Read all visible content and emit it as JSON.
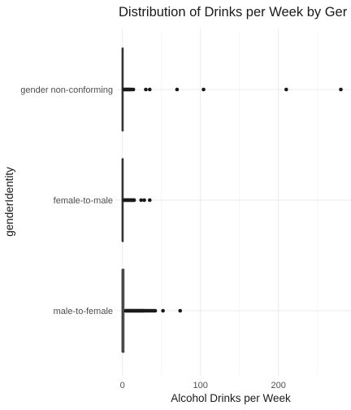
{
  "chart_data": {
    "type": "boxplot",
    "orientation": "horizontal",
    "title": "Distribution of Drinks per Week by Ger",
    "xlabel": "Alcohol Drinks per Week",
    "ylabel": "genderIdentity",
    "xlim": [
      -8,
      293
    ],
    "x_ticks": [
      0,
      100,
      200
    ],
    "x_tick_labels": [
      "0",
      "100",
      "200"
    ],
    "grid": true,
    "categories": [
      "male-to-female",
      "female-to-male",
      "gender non-conforming"
    ],
    "boxes": [
      {
        "category": "male-to-female",
        "q1": 0,
        "median": 0,
        "q3": 2,
        "whisker_low": 0,
        "whisker_high": 3,
        "outliers": [
          4,
          5,
          6,
          7,
          8,
          9,
          10,
          11,
          12,
          13,
          14,
          15,
          16,
          17,
          18,
          19,
          20,
          21,
          22,
          23,
          24,
          25,
          26,
          27,
          28,
          30,
          32,
          34,
          36,
          38,
          40,
          42,
          52,
          74
        ]
      },
      {
        "category": "female-to-male",
        "q1": 0,
        "median": 0,
        "q3": 1,
        "whisker_low": 0,
        "whisker_high": 1,
        "outliers": [
          2,
          3,
          4,
          5,
          6,
          7,
          8,
          9,
          10,
          11,
          12,
          13,
          14,
          15,
          24,
          28,
          35
        ]
      },
      {
        "category": "gender non-conforming",
        "q1": 0,
        "median": 0,
        "q3": 1,
        "whisker_low": 0,
        "whisker_high": 1,
        "outliers": [
          2,
          3,
          4,
          5,
          6,
          7,
          8,
          9,
          10,
          12,
          14,
          30,
          35,
          70,
          104,
          210,
          280
        ]
      }
    ]
  }
}
